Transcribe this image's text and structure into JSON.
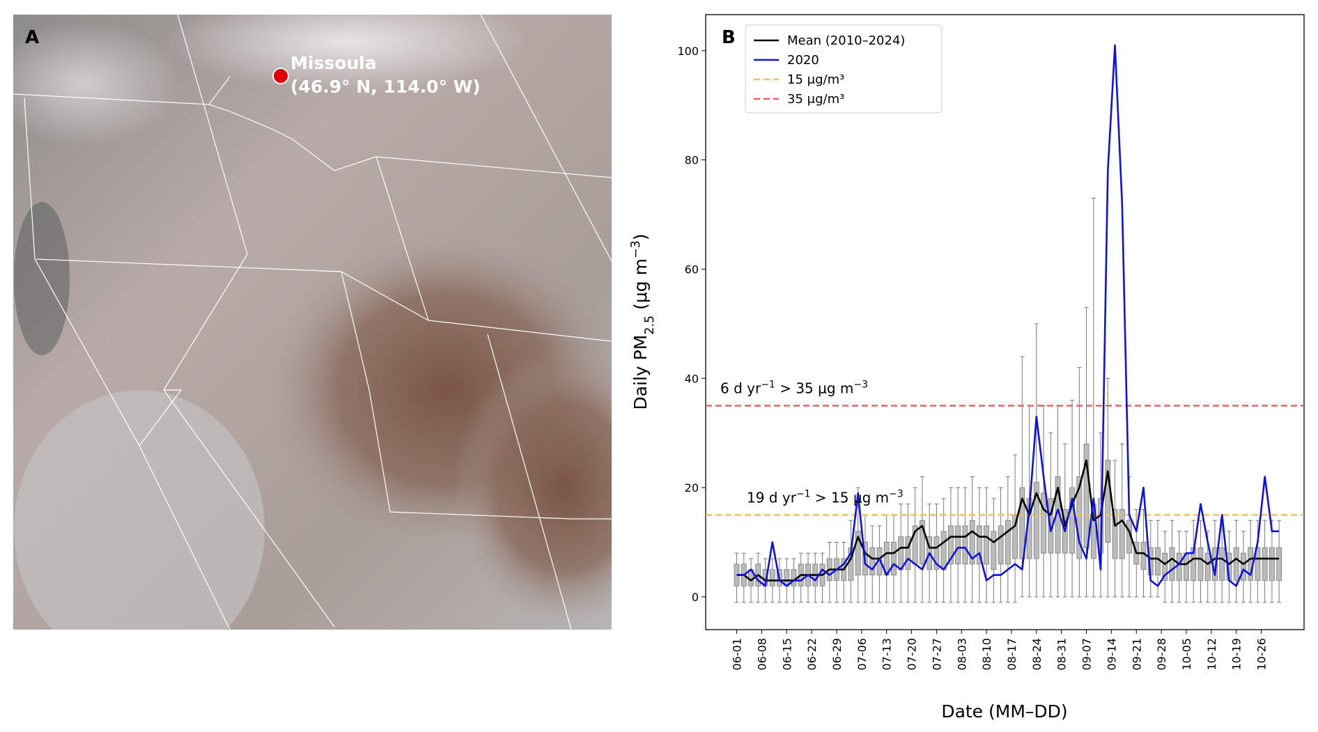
{
  "map_panel": {
    "label": "A",
    "city": "Missoula",
    "coords": "(46.9° N, 114.0° W)"
  },
  "chart_data": {
    "type": "line",
    "panel_label": "B",
    "xlabel": "Date (MM–DD)",
    "ylabel": [
      "Daily PM",
      "2.5",
      " (μg m",
      "−3",
      ")"
    ],
    "x": [
      0,
      2,
      4,
      6,
      8,
      10,
      12,
      14,
      16,
      18,
      20,
      22,
      24,
      26,
      28,
      30,
      32,
      34,
      36,
      38,
      40,
      42,
      44,
      46,
      48,
      50,
      52,
      54,
      56,
      58,
      60,
      62,
      64,
      66,
      68,
      70,
      72,
      74,
      76,
      78,
      80,
      82,
      84,
      86,
      88,
      90,
      92,
      94,
      96,
      98,
      100,
      102,
      104,
      106,
      108,
      110,
      112,
      114,
      116,
      118,
      120,
      122,
      124,
      126,
      128,
      130,
      132,
      134,
      136,
      138,
      140,
      142,
      144,
      146,
      148,
      150,
      152
    ],
    "xlim": [
      -8.7,
      159
    ],
    "ylim": [
      -6,
      106.6
    ],
    "xticks": [
      {
        "value": 0,
        "label": "06-01"
      },
      {
        "value": 7,
        "label": "06-08"
      },
      {
        "value": 14,
        "label": "06-15"
      },
      {
        "value": 21,
        "label": "06-22"
      },
      {
        "value": 28,
        "label": "06-29"
      },
      {
        "value": 35,
        "label": "07-06"
      },
      {
        "value": 42,
        "label": "07-13"
      },
      {
        "value": 49,
        "label": "07-20"
      },
      {
        "value": 56,
        "label": "07-27"
      },
      {
        "value": 63,
        "label": "08-03"
      },
      {
        "value": 70,
        "label": "08-10"
      },
      {
        "value": 77,
        "label": "08-17"
      },
      {
        "value": 84,
        "label": "08-24"
      },
      {
        "value": 91,
        "label": "08-31"
      },
      {
        "value": 98,
        "label": "09-07"
      },
      {
        "value": 105,
        "label": "09-14"
      },
      {
        "value": 112,
        "label": "09-21"
      },
      {
        "value": 119,
        "label": "09-28"
      },
      {
        "value": 126,
        "label": "10-05"
      },
      {
        "value": 133,
        "label": "10-12"
      },
      {
        "value": 140,
        "label": "10-19"
      },
      {
        "value": 147,
        "label": "10-26"
      }
    ],
    "yticks": [
      0,
      20,
      40,
      60,
      80,
      100
    ],
    "legend": "upper left",
    "series": [
      {
        "name": "Mean (2010–2024)",
        "color": "#000000",
        "values": [
          4,
          4,
          3,
          4,
          3,
          3,
          3,
          3,
          3,
          4,
          4,
          4,
          4,
          5,
          5,
          5,
          7,
          11,
          8,
          7,
          7,
          8,
          8,
          9,
          9,
          12,
          13,
          9,
          9,
          10,
          11,
          11,
          11,
          12,
          11,
          11,
          10,
          11,
          12,
          13,
          18,
          15,
          19,
          16,
          15,
          20,
          13,
          17,
          20,
          25,
          14,
          15,
          23,
          13,
          14,
          12,
          8,
          8,
          7,
          7,
          6,
          7,
          6,
          6,
          7,
          7,
          6,
          7,
          7,
          6,
          7,
          6,
          7,
          7,
          7,
          7,
          7
        ]
      },
      {
        "name": "2020",
        "color": "#1010e0",
        "values": [
          4,
          4,
          5,
          3,
          2,
          10,
          3,
          2,
          3,
          3,
          4,
          3,
          5,
          4,
          5,
          6,
          8,
          19,
          6,
          5,
          7,
          4,
          6,
          5,
          7,
          6,
          5,
          8,
          6,
          5,
          7,
          9,
          9,
          7,
          8,
          3,
          4,
          4,
          5,
          6,
          5,
          16,
          33,
          22,
          12,
          16,
          12,
          18,
          10,
          7,
          18,
          5,
          78,
          101,
          72,
          15,
          12,
          20,
          3,
          2,
          4,
          5,
          6,
          8,
          8,
          17,
          10,
          4,
          15,
          3,
          2,
          5,
          4,
          10,
          22,
          12,
          12
        ]
      }
    ],
    "boxes": {
      "color": "#bbbbbb",
      "q1": [
        2,
        2,
        2,
        2,
        2,
        2,
        2,
        2,
        2,
        2,
        2,
        2,
        2,
        3,
        3,
        3,
        3,
        4,
        4,
        4,
        4,
        4,
        4,
        5,
        5,
        6,
        6,
        5,
        5,
        5,
        6,
        6,
        6,
        6,
        6,
        6,
        5,
        6,
        6,
        7,
        7,
        7,
        7,
        8,
        8,
        8,
        8,
        8,
        7,
        9,
        7,
        8,
        10,
        7,
        7,
        8,
        6,
        5,
        4,
        4,
        3,
        3,
        3,
        3,
        3,
        3,
        3,
        3,
        3,
        3,
        3,
        3,
        3,
        3,
        3,
        3,
        3
      ],
      "q3": [
        6,
        6,
        5,
        6,
        5,
        5,
        5,
        5,
        5,
        6,
        6,
        6,
        6,
        7,
        7,
        7,
        9,
        12,
        10,
        9,
        9,
        10,
        10,
        11,
        11,
        13,
        14,
        11,
        11,
        12,
        13,
        13,
        13,
        14,
        13,
        13,
        12,
        13,
        14,
        15,
        20,
        18,
        21,
        19,
        18,
        22,
        16,
        20,
        22,
        28,
        17,
        18,
        25,
        16,
        16,
        14,
        10,
        10,
        9,
        9,
        8,
        9,
        8,
        8,
        9,
        9,
        8,
        9,
        9,
        8,
        9,
        8,
        9,
        9,
        9,
        9,
        9
      ],
      "whislo": [
        -1,
        -1,
        -1,
        -1,
        -1,
        -1,
        -1,
        -1,
        -1,
        -1,
        -1,
        -1,
        -1,
        -1,
        -1,
        -1,
        -1,
        -1,
        -1,
        -1,
        -1,
        -1,
        -1,
        -1,
        -1,
        -1,
        -1,
        -1,
        -1,
        -1,
        -1,
        -1,
        -1,
        -1,
        -1,
        -1,
        -1,
        -1,
        -1,
        -1,
        0,
        0,
        0,
        0,
        0,
        0,
        0,
        0,
        0,
        0,
        0,
        0,
        0,
        0,
        0,
        0,
        0,
        0,
        0,
        0,
        -1,
        -1,
        -1,
        -1,
        -1,
        -1,
        -1,
        -1,
        -1,
        -1,
        -1,
        -1,
        -1,
        -1,
        -1,
        -1,
        -1
      ],
      "whishi": [
        8,
        8,
        7,
        8,
        7,
        7,
        7,
        7,
        7,
        8,
        8,
        8,
        8,
        10,
        10,
        10,
        14,
        20,
        15,
        13,
        13,
        15,
        15,
        17,
        17,
        20,
        22,
        17,
        17,
        18,
        20,
        20,
        20,
        22,
        20,
        20,
        18,
        20,
        22,
        26,
        44,
        35,
        50,
        35,
        30,
        35,
        28,
        36,
        42,
        53,
        73,
        30,
        40,
        25,
        28,
        22,
        16,
        16,
        14,
        14,
        12,
        14,
        12,
        12,
        14,
        14,
        12,
        14,
        14,
        12,
        14,
        12,
        14,
        14,
        14,
        14,
        14
      ]
    },
    "reference_lines": [
      {
        "name": "15 μg/m³",
        "value": 15,
        "color": "#f5c060"
      },
      {
        "name": "35 μg/m³",
        "value": 35,
        "color": "#f06060"
      }
    ],
    "annotations": [
      {
        "y": 35,
        "parts": [
          "6 d yr",
          "−1",
          " > 35 μg m",
          "−3"
        ]
      },
      {
        "y": 15,
        "parts": [
          "19 d  yr",
          "−1",
          " > 15 μg m",
          "−3"
        ]
      }
    ]
  }
}
